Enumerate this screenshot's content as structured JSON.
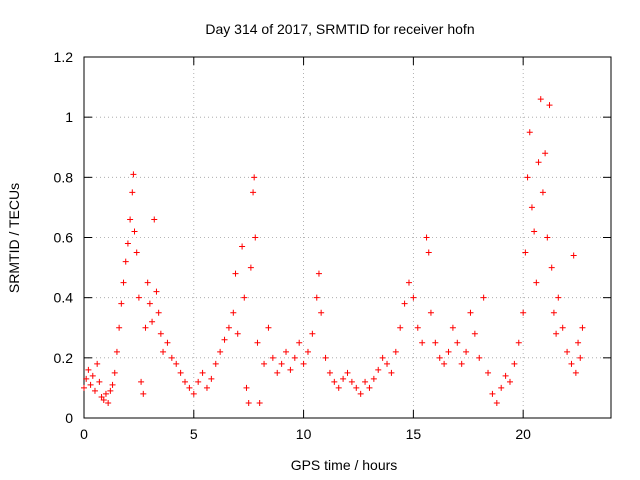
{
  "chart_data": {
    "type": "scatter",
    "title": "Day 314 of 2017, SRMTID for receiver hofn",
    "xlabel": "GPS time / hours",
    "ylabel": "SRMTID / TECUs",
    "xlim": [
      0,
      24
    ],
    "ylim": [
      0,
      1.2
    ],
    "x_ticks": [
      0,
      5,
      10,
      15,
      20
    ],
    "x_tick_labels": [
      "0",
      "5",
      "10",
      "15",
      "20"
    ],
    "y_ticks": [
      0,
      0.2,
      0.4,
      0.6,
      0.8,
      1.0,
      1.2
    ],
    "y_tick_labels": [
      "0",
      "0.2",
      "0.4",
      "0.6",
      "0.8",
      "1",
      "1.2"
    ],
    "grid": true,
    "marker": "+",
    "colors": {
      "series": "#ff0000",
      "axis": "#000000",
      "grid": "#a0a0a0"
    },
    "series": [
      {
        "name": "SRMTID",
        "points": [
          [
            0.0,
            0.1
          ],
          [
            0.1,
            0.13
          ],
          [
            0.2,
            0.16
          ],
          [
            0.3,
            0.11
          ],
          [
            0.4,
            0.14
          ],
          [
            0.5,
            0.09
          ],
          [
            0.6,
            0.18
          ],
          [
            0.7,
            0.12
          ],
          [
            0.8,
            0.07
          ],
          [
            0.9,
            0.06
          ],
          [
            1.0,
            0.08
          ],
          [
            1.1,
            0.05
          ],
          [
            1.2,
            0.09
          ],
          [
            1.3,
            0.11
          ],
          [
            1.4,
            0.15
          ],
          [
            1.5,
            0.22
          ],
          [
            1.6,
            0.3
          ],
          [
            1.7,
            0.38
          ],
          [
            1.8,
            0.45
          ],
          [
            1.9,
            0.52
          ],
          [
            2.0,
            0.58
          ],
          [
            2.1,
            0.66
          ],
          [
            2.2,
            0.75
          ],
          [
            2.25,
            0.81
          ],
          [
            2.3,
            0.62
          ],
          [
            2.4,
            0.55
          ],
          [
            2.5,
            0.4
          ],
          [
            2.6,
            0.12
          ],
          [
            2.7,
            0.08
          ],
          [
            2.8,
            0.3
          ],
          [
            2.9,
            0.45
          ],
          [
            3.0,
            0.38
          ],
          [
            3.1,
            0.32
          ],
          [
            3.2,
            0.66
          ],
          [
            3.3,
            0.42
          ],
          [
            3.4,
            0.35
          ],
          [
            3.5,
            0.28
          ],
          [
            3.6,
            0.22
          ],
          [
            3.8,
            0.25
          ],
          [
            4.0,
            0.2
          ],
          [
            4.2,
            0.18
          ],
          [
            4.4,
            0.15
          ],
          [
            4.6,
            0.12
          ],
          [
            4.8,
            0.1
          ],
          [
            5.0,
            0.08
          ],
          [
            5.2,
            0.12
          ],
          [
            5.4,
            0.15
          ],
          [
            5.6,
            0.1
          ],
          [
            5.8,
            0.13
          ],
          [
            6.0,
            0.18
          ],
          [
            6.2,
            0.22
          ],
          [
            6.4,
            0.26
          ],
          [
            6.6,
            0.3
          ],
          [
            6.8,
            0.35
          ],
          [
            6.9,
            0.48
          ],
          [
            7.0,
            0.28
          ],
          [
            7.2,
            0.57
          ],
          [
            7.3,
            0.4
          ],
          [
            7.4,
            0.1
          ],
          [
            7.5,
            0.05
          ],
          [
            7.6,
            0.5
          ],
          [
            7.7,
            0.75
          ],
          [
            7.75,
            0.8
          ],
          [
            7.8,
            0.6
          ],
          [
            7.9,
            0.25
          ],
          [
            8.0,
            0.05
          ],
          [
            8.2,
            0.18
          ],
          [
            8.4,
            0.3
          ],
          [
            8.6,
            0.2
          ],
          [
            8.8,
            0.15
          ],
          [
            9.0,
            0.18
          ],
          [
            9.2,
            0.22
          ],
          [
            9.4,
            0.16
          ],
          [
            9.6,
            0.2
          ],
          [
            9.8,
            0.25
          ],
          [
            10.0,
            0.18
          ],
          [
            10.2,
            0.22
          ],
          [
            10.4,
            0.28
          ],
          [
            10.6,
            0.4
          ],
          [
            10.7,
            0.48
          ],
          [
            10.8,
            0.35
          ],
          [
            11.0,
            0.2
          ],
          [
            11.2,
            0.15
          ],
          [
            11.4,
            0.12
          ],
          [
            11.6,
            0.1
          ],
          [
            11.8,
            0.13
          ],
          [
            12.0,
            0.15
          ],
          [
            12.2,
            0.12
          ],
          [
            12.4,
            0.1
          ],
          [
            12.6,
            0.08
          ],
          [
            12.8,
            0.12
          ],
          [
            13.0,
            0.1
          ],
          [
            13.2,
            0.13
          ],
          [
            13.4,
            0.16
          ],
          [
            13.6,
            0.2
          ],
          [
            13.8,
            0.18
          ],
          [
            14.0,
            0.15
          ],
          [
            14.2,
            0.22
          ],
          [
            14.4,
            0.3
          ],
          [
            14.6,
            0.38
          ],
          [
            14.8,
            0.45
          ],
          [
            15.0,
            0.4
          ],
          [
            15.2,
            0.3
          ],
          [
            15.4,
            0.25
          ],
          [
            15.6,
            0.6
          ],
          [
            15.7,
            0.55
          ],
          [
            15.8,
            0.35
          ],
          [
            16.0,
            0.25
          ],
          [
            16.2,
            0.2
          ],
          [
            16.4,
            0.18
          ],
          [
            16.6,
            0.22
          ],
          [
            16.8,
            0.3
          ],
          [
            17.0,
            0.25
          ],
          [
            17.2,
            0.18
          ],
          [
            17.4,
            0.22
          ],
          [
            17.6,
            0.35
          ],
          [
            17.8,
            0.28
          ],
          [
            18.0,
            0.2
          ],
          [
            18.2,
            0.4
          ],
          [
            18.4,
            0.15
          ],
          [
            18.6,
            0.08
          ],
          [
            18.8,
            0.05
          ],
          [
            19.0,
            0.1
          ],
          [
            19.2,
            0.14
          ],
          [
            19.4,
            0.12
          ],
          [
            19.6,
            0.18
          ],
          [
            19.8,
            0.25
          ],
          [
            20.0,
            0.35
          ],
          [
            20.1,
            0.55
          ],
          [
            20.2,
            0.8
          ],
          [
            20.3,
            0.95
          ],
          [
            20.4,
            0.7
          ],
          [
            20.5,
            0.62
          ],
          [
            20.6,
            0.45
          ],
          [
            20.7,
            0.85
          ],
          [
            20.8,
            1.06
          ],
          [
            20.9,
            0.75
          ],
          [
            21.0,
            0.88
          ],
          [
            21.1,
            0.6
          ],
          [
            21.2,
            1.04
          ],
          [
            21.3,
            0.5
          ],
          [
            21.4,
            0.35
          ],
          [
            21.5,
            0.28
          ],
          [
            21.6,
            0.4
          ],
          [
            21.8,
            0.3
          ],
          [
            22.0,
            0.22
          ],
          [
            22.2,
            0.18
          ],
          [
            22.3,
            0.54
          ],
          [
            22.4,
            0.15
          ],
          [
            22.5,
            0.25
          ],
          [
            22.6,
            0.2
          ],
          [
            22.7,
            0.3
          ]
        ]
      }
    ]
  }
}
